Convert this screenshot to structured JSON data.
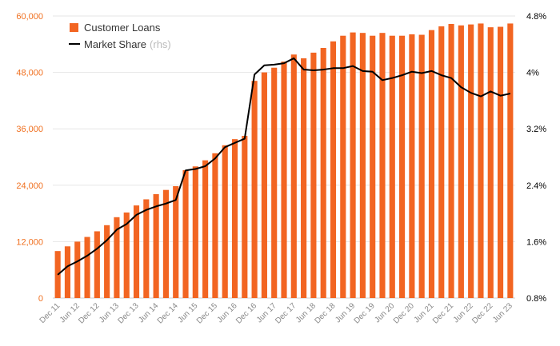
{
  "chart_data": {
    "type": "bar",
    "categories": [
      "Dec 11",
      "Mar 12",
      "Jun 12",
      "Sep 12",
      "Dec 12",
      "Mar 13",
      "Jun 13",
      "Sep 13",
      "Dec 13",
      "Mar 14",
      "Jun 14",
      "Sep 14",
      "Dec 14",
      "Mar 15",
      "Jun 15",
      "Sep 15",
      "Dec 15",
      "Mar 16",
      "Jun 16",
      "Sep 16",
      "Dec 16",
      "Mar 17",
      "Jun 17",
      "Sep 17",
      "Dec 17",
      "Mar 18",
      "Jun 18",
      "Sep 18",
      "Dec 18",
      "Mar 19",
      "Jun 19",
      "Sep 19",
      "Dec 19",
      "Mar 20",
      "Jun 20",
      "Sep 20",
      "Dec 20",
      "Mar 21",
      "Jun 21",
      "Sep 21",
      "Dec 21",
      "Mar 22",
      "Jun 22",
      "Sep 22",
      "Dec 22",
      "Mar 23",
      "Jun 23"
    ],
    "x_tick_labels": [
      "Dec 11",
      "Jun 12",
      "Dec 12",
      "Jun 13",
      "Dec 13",
      "Jun 14",
      "Dec 14",
      "Jun 15",
      "Dec 15",
      "Jun 16",
      "Dec 16",
      "Jun 17",
      "Dec 17",
      "Jun 18",
      "Dec 18",
      "Jun 19",
      "Dec 19",
      "Jun 20",
      "Dec 20",
      "Jun 21",
      "Dec 21",
      "Jun 22",
      "Dec 22",
      "Jun 23"
    ],
    "series": [
      {
        "name": "Customer Loans",
        "kind": "bar",
        "axis": "left",
        "color": "#f26522",
        "values": [
          10000,
          11000,
          12000,
          13000,
          14200,
          15500,
          17200,
          18200,
          19700,
          21000,
          22100,
          23000,
          23800,
          27200,
          28000,
          29300,
          30800,
          32500,
          33800,
          34500,
          46200,
          48000,
          49000,
          50300,
          51800,
          51000,
          52200,
          53200,
          54600,
          55800,
          56500,
          56400,
          55800,
          56400,
          55800,
          55800,
          56100,
          56000,
          57000,
          57800,
          58300,
          58000,
          58200,
          58400,
          57600,
          57700,
          58400
        ]
      },
      {
        "name": "Market Share",
        "name_suffix": "(rhs)",
        "kind": "line",
        "axis": "right",
        "color": "#000000",
        "values": [
          1.13,
          1.25,
          1.32,
          1.4,
          1.5,
          1.62,
          1.77,
          1.85,
          1.98,
          2.05,
          2.1,
          2.14,
          2.19,
          2.61,
          2.63,
          2.67,
          2.78,
          2.94,
          3.0,
          3.06,
          3.97,
          4.1,
          4.11,
          4.13,
          4.2,
          4.04,
          4.03,
          4.04,
          4.06,
          4.06,
          4.09,
          4.02,
          4.01,
          3.89,
          3.92,
          3.96,
          4.01,
          3.99,
          4.02,
          3.96,
          3.92,
          3.79,
          3.71,
          3.66,
          3.73,
          3.67,
          3.7
        ]
      }
    ],
    "y_left": {
      "min": 0,
      "max": 60000,
      "ticks": [
        "0",
        "12,000",
        "24,000",
        "36,000",
        "48,000",
        "60,000"
      ]
    },
    "y_right": {
      "min": 0.8,
      "max": 4.8,
      "ticks": [
        "0.8%",
        "1.6%",
        "2.4%",
        "3.2%",
        "4%",
        "4.8%"
      ]
    },
    "grid": true,
    "legend_position": "top-left"
  }
}
